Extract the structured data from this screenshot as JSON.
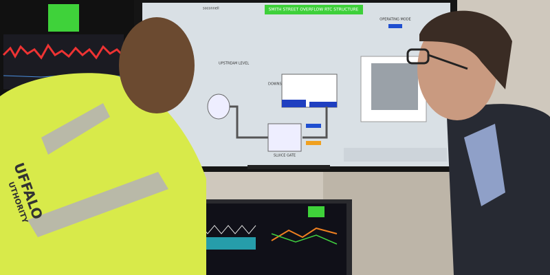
{
  "scene": {
    "screen_title": "SMITH STREET OVERFLOW RTC STRUCTURE",
    "screen_brand": "soconnell",
    "screen_labels": [
      "OPERATING MODE",
      "UPSTREAM LEVEL",
      "DOWNSTREAM LEVEL",
      "SLUICE GATE"
    ],
    "jacket_text": [
      "UFFALO",
      "UTHORITY"
    ]
  }
}
